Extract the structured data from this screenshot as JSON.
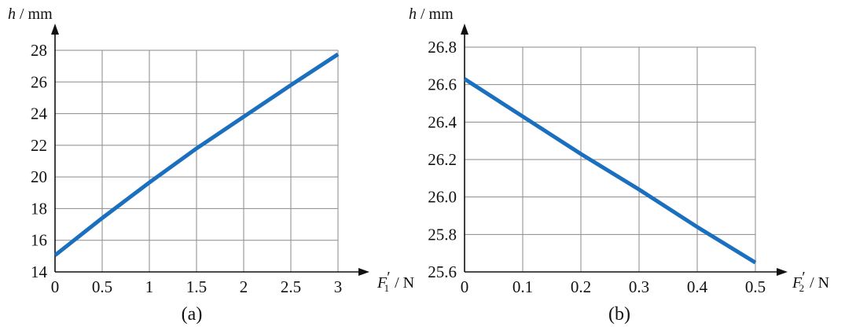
{
  "chart_data": [
    {
      "type": "line",
      "panel_label": "(a)",
      "xlabel": {
        "var": "F",
        "sub": "1",
        "prime": "′",
        "unit": " / N"
      },
      "ylabel": {
        "var": "h",
        "unit": " / mm"
      },
      "xlim": [
        0,
        3
      ],
      "ylim": [
        14,
        28
      ],
      "xticks": [
        0,
        0.5,
        1,
        1.5,
        2,
        2.5,
        3
      ],
      "xtick_labels": [
        "0",
        "0.5",
        "1",
        "1.5",
        "2",
        "2.5",
        "3"
      ],
      "yticks": [
        14,
        16,
        18,
        20,
        22,
        24,
        26,
        28
      ],
      "ytick_labels": [
        "14",
        "16",
        "18",
        "20",
        "22",
        "24",
        "26",
        "28"
      ],
      "grid": true,
      "series": [
        {
          "color": "#1a6fbf",
          "x": [
            0,
            0.5,
            1,
            1.5,
            2,
            2.5,
            3
          ],
          "y": [
            15.05,
            17.4,
            19.65,
            21.8,
            23.8,
            25.8,
            27.75
          ]
        }
      ]
    },
    {
      "type": "line",
      "panel_label": "(b)",
      "xlabel": {
        "var": "F",
        "sub": "2",
        "prime": "′",
        "unit": " / N"
      },
      "ylabel": {
        "var": "h",
        "unit": " / mm"
      },
      "xlim": [
        0,
        0.5
      ],
      "ylim": [
        25.6,
        26.8
      ],
      "xticks": [
        0,
        0.1,
        0.2,
        0.3,
        0.4,
        0.5
      ],
      "xtick_labels": [
        "0",
        "0.1",
        "0.2",
        "0.3",
        "0.4",
        "0.5"
      ],
      "yticks": [
        25.6,
        25.8,
        26.0,
        26.2,
        26.4,
        26.6,
        26.8
      ],
      "ytick_labels": [
        "25.6",
        "25.8",
        "26.0",
        "26.2",
        "26.4",
        "26.6",
        "26.8"
      ],
      "grid": true,
      "series": [
        {
          "color": "#1a6fbf",
          "x": [
            0,
            0.1,
            0.2,
            0.3,
            0.4,
            0.5
          ],
          "y": [
            26.63,
            26.43,
            26.23,
            26.04,
            25.84,
            25.65
          ]
        }
      ]
    }
  ]
}
